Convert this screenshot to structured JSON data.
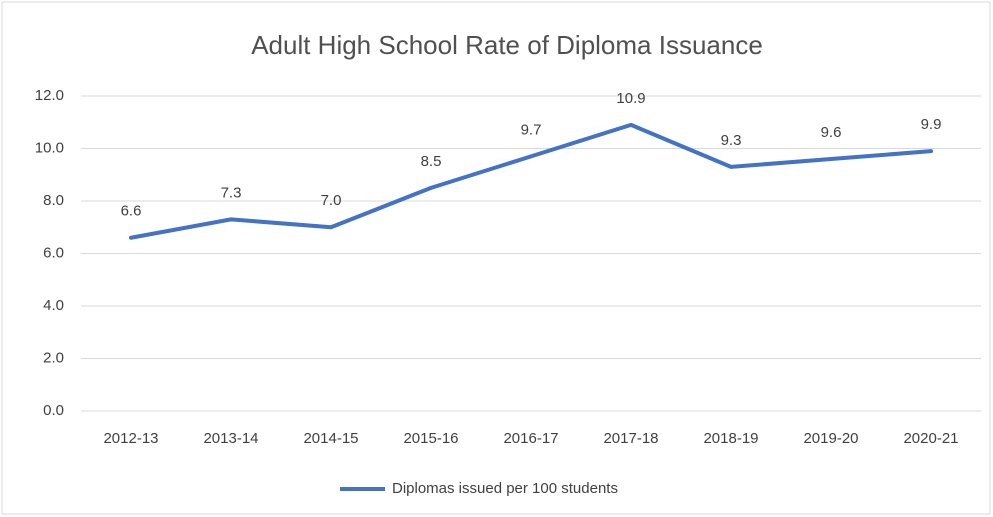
{
  "chart_data": {
    "type": "line",
    "title": "Adult High School Rate of Diploma Issuance",
    "categories": [
      "2012-13",
      "2013-14",
      "2014-15",
      "2015-16",
      "2016-17",
      "2017-18",
      "2018-19",
      "2019-20",
      "2020-21"
    ],
    "series": [
      {
        "name": "Diplomas issued per 100 students",
        "color": "#4472c4",
        "values": [
          6.6,
          7.3,
          7.0,
          8.5,
          9.7,
          10.9,
          9.3,
          9.6,
          9.9
        ],
        "value_labels": [
          "6.6",
          "7.3",
          "7.0",
          "8.5",
          "9.7",
          "10.9",
          "9.3",
          "9.6",
          "9.9"
        ]
      }
    ],
    "ylim": [
      0,
      12
    ],
    "yticks": [
      {
        "value": 0,
        "label": "0.0"
      },
      {
        "value": 2,
        "label": "2.0"
      },
      {
        "value": 4,
        "label": "4.0"
      },
      {
        "value": 6,
        "label": "6.0"
      },
      {
        "value": 8,
        "label": "8.0"
      },
      {
        "value": 10,
        "label": "10.0"
      },
      {
        "value": 12,
        "label": "12.0"
      }
    ],
    "grid": true,
    "legend": "bottom"
  }
}
